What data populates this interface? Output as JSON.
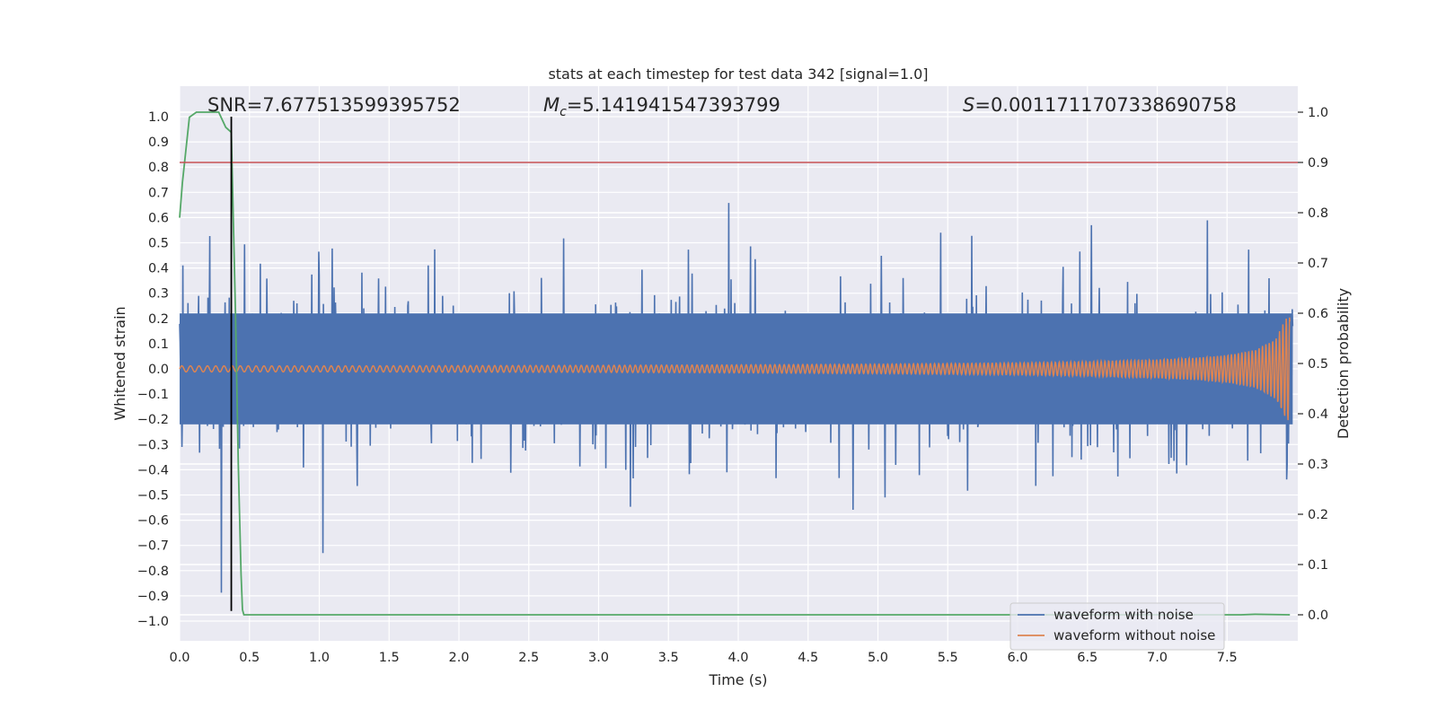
{
  "chart_data": {
    "type": "line",
    "title": "stats at each timestep for test data 342 [signal=1.0]",
    "xlabel": "Time (s)",
    "ylabel": "Whitened strain",
    "y2label": "Detection probability",
    "xlim": [
      0.0,
      8.0
    ],
    "ylim": [
      -1.1,
      1.1
    ],
    "y2lim": [
      -0.05,
      1.05
    ],
    "x_ticks": [
      "0.0",
      "0.5",
      "1.0",
      "1.5",
      "2.0",
      "2.5",
      "3.0",
      "3.5",
      "4.0",
      "4.5",
      "5.0",
      "5.5",
      "6.0",
      "6.5",
      "7.0",
      "7.5"
    ],
    "y_ticks": [
      "1.0",
      "0.9",
      "0.8",
      "0.7",
      "0.6",
      "0.5",
      "0.4",
      "0.3",
      "0.2",
      "0.1",
      "0.0",
      "−0.1",
      "−0.2",
      "−0.3",
      "−0.4",
      "−0.5",
      "−0.6",
      "−0.7",
      "−0.8",
      "−0.9",
      "−1.0"
    ],
    "y2_ticks": [
      "1.0",
      "0.9",
      "0.8",
      "0.7",
      "0.6",
      "0.5",
      "0.4",
      "0.3",
      "0.2",
      "0.1",
      "0.0"
    ],
    "annotations": {
      "snr": "SNR=7.677513599395752",
      "mc_symbol": "M",
      "mc_sub": "c",
      "mc_value": "=5.141941547393799",
      "s_symbol": "S",
      "s_value": "=0.0011711707338690758"
    },
    "threshold_line": {
      "y2": 0.9,
      "color": "#c44e52"
    },
    "marker_line": {
      "x": 0.37,
      "color": "#000000"
    },
    "series": [
      {
        "name": "waveform with noise",
        "color": "#4c72b0",
        "description_values": {
          "core_band": [
            -0.22,
            0.22
          ],
          "peak_max": 1.0,
          "peak_min": -0.96
        }
      },
      {
        "name": "waveform without noise",
        "color": "#dd8452",
        "envelope": {
          "t": [
            0.0,
            1.0,
            2.0,
            3.0,
            4.0,
            5.0,
            6.0,
            6.5,
            7.0,
            7.3,
            7.5,
            7.7,
            7.85,
            7.92,
            7.95
          ],
          "amp": [
            0.012,
            0.012,
            0.013,
            0.014,
            0.016,
            0.019,
            0.024,
            0.029,
            0.037,
            0.045,
            0.055,
            0.075,
            0.12,
            0.2,
            0.21
          ]
        }
      },
      {
        "name": "detection probability",
        "color": "#55a868",
        "x": [
          0.0,
          0.02,
          0.07,
          0.12,
          0.2,
          0.28,
          0.33,
          0.37,
          0.4,
          0.42,
          0.44,
          0.45,
          0.46,
          0.6,
          7.6,
          7.7,
          7.95
        ],
        "y": [
          0.79,
          0.86,
          0.99,
          1.0,
          1.0,
          1.0,
          0.97,
          0.96,
          0.6,
          0.3,
          0.08,
          0.01,
          0.0,
          0.0,
          0.0,
          0.001,
          0.0
        ]
      }
    ],
    "legend": {
      "position": "bottom-right",
      "entries": [
        "waveform with noise",
        "waveform without noise"
      ]
    }
  }
}
